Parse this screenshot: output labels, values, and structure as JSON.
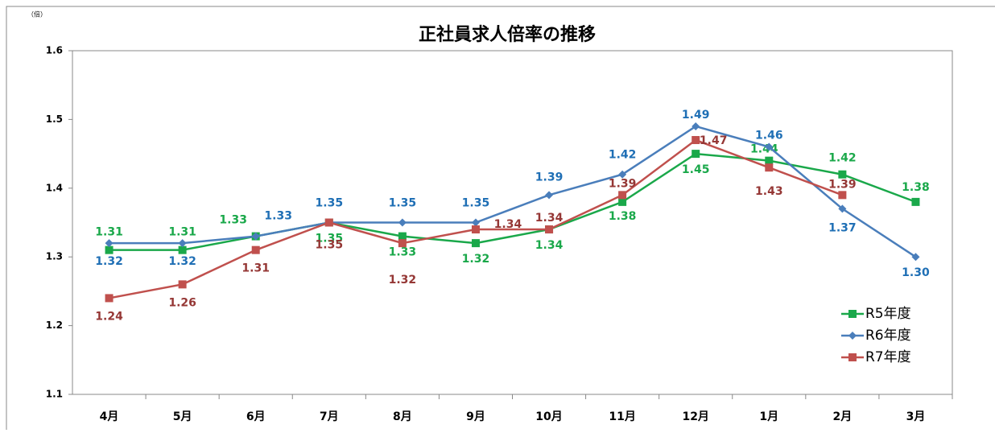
{
  "chart_data": {
    "type": "line",
    "title": "正社員求人倍率の推移",
    "unit_label": "（倍）",
    "categories": [
      "4月",
      "5月",
      "6月",
      "7月",
      "8月",
      "9月",
      "10月",
      "11月",
      "12月",
      "1月",
      "2月",
      "3月"
    ],
    "series": [
      {
        "name": "R5年度",
        "color": "#1aa84a",
        "marker": "square",
        "values": [
          1.31,
          1.31,
          1.33,
          1.35,
          1.33,
          1.32,
          1.34,
          1.38,
          1.45,
          1.44,
          1.42,
          1.38
        ],
        "value_labels": [
          "1.31",
          "1.31",
          "1.33",
          "1.35",
          "1.33",
          "1.32",
          "1.34",
          "1.38",
          "1.45",
          "1.44",
          "1.42",
          "1.38"
        ]
      },
      {
        "name": "R6年度",
        "color": "#4a7ebb",
        "label_color": "#1f6fb5",
        "marker": "diamond",
        "values": [
          1.32,
          1.32,
          1.33,
          1.35,
          1.35,
          1.35,
          1.39,
          1.42,
          1.49,
          1.46,
          1.37,
          1.3
        ],
        "value_labels": [
          "1.32",
          "1.32",
          "1.33",
          "1.35",
          "1.35",
          "1.35",
          "1.39",
          "1.42",
          "1.49",
          "1.46",
          "1.37",
          "1.30"
        ]
      },
      {
        "name": "R7年度",
        "color": "#c0504d",
        "label_color": "#953735",
        "marker": "square",
        "values": [
          1.24,
          1.26,
          1.31,
          1.35,
          1.32,
          1.34,
          1.34,
          1.39,
          1.47,
          1.43,
          1.39,
          null
        ],
        "value_labels": [
          "1.24",
          "1.26",
          "1.31",
          "1.35",
          "1.32",
          "1.34",
          "1.34",
          "1.39",
          "1.47",
          "1.43",
          "1.39",
          null
        ]
      }
    ],
    "ylim": [
      1.1,
      1.6
    ],
    "yticks": [
      1.1,
      1.2,
      1.3,
      1.4,
      1.5,
      1.6
    ],
    "grid": false,
    "legend": "lower right"
  }
}
